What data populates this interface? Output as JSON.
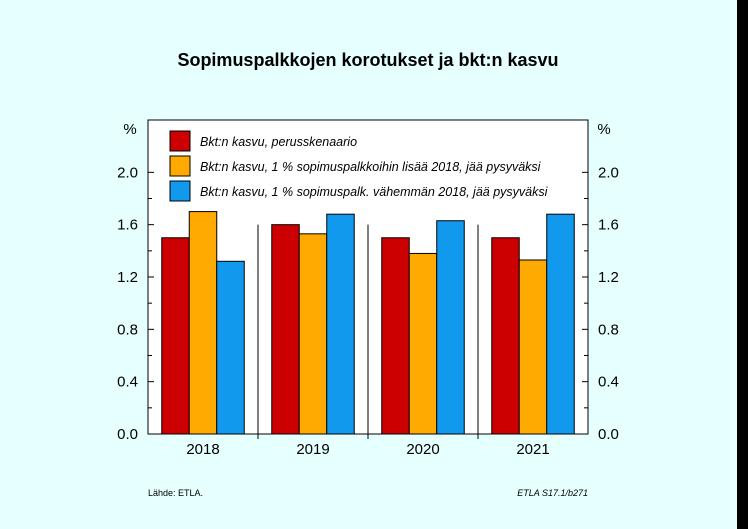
{
  "chart_data": {
    "type": "bar",
    "title": "Sopimuspalkkojen korotukset ja bkt:n kasvu",
    "ylabel_left": "%",
    "ylabel_right": "%",
    "categories": [
      "2018",
      "2019",
      "2020",
      "2021"
    ],
    "ylim": [
      0.0,
      2.4
    ],
    "yticks": [
      "0.0",
      "0.4",
      "0.8",
      "1.2",
      "1.6",
      "2.0"
    ],
    "grid": false,
    "legend_position": "top-left",
    "series": [
      {
        "name": "Bkt:n kasvu, perusskenaario",
        "color": "#cc0000",
        "values": [
          1.5,
          1.6,
          1.5,
          1.5
        ]
      },
      {
        "name": "Bkt:n kasvu, 1 % sopimuspalkkoihin lisää 2018, jää pysyväksi",
        "color": "#ffaa00",
        "values": [
          1.7,
          1.53,
          1.38,
          1.33
        ]
      },
      {
        "name": "Bkt:n kasvu, 1 % sopimuspalk. vähemmän 2018, jää pysyväksi",
        "color": "#1199ee",
        "values": [
          1.32,
          1.68,
          1.63,
          1.68
        ]
      }
    ]
  },
  "footer": {
    "source": "Lähde:   ETLA.",
    "code": "ETLA S17.1/b271"
  }
}
